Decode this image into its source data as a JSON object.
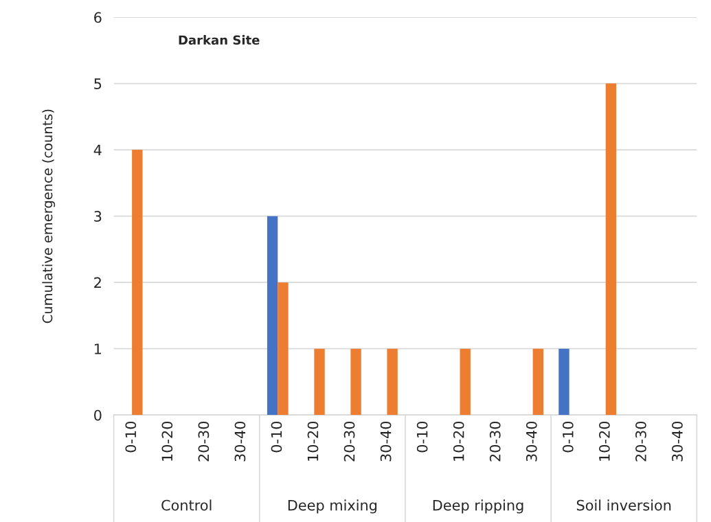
{
  "chart_data": {
    "type": "bar",
    "title": "Darkan Site",
    "ylabel": "Cumulative emergence (counts)",
    "categories": [
      "0-10",
      "10-20",
      "20-30",
      "30-40",
      "0-10",
      "10-20",
      "20-30",
      "30-40",
      "0-10",
      "10-20",
      "20-30",
      "30-40",
      "0-10",
      "10-20",
      "20-30",
      "30-40"
    ],
    "series": [
      {
        "color": "#4472c4",
        "values": [
          0,
          0,
          0,
          0,
          3,
          0,
          0,
          0,
          0,
          0,
          0,
          0,
          1,
          0,
          0,
          0
        ]
      },
      {
        "color": "#ed7d31",
        "values": [
          4,
          0,
          0,
          0,
          2,
          1,
          1,
          1,
          0,
          1,
          0,
          1,
          0,
          5,
          0,
          0
        ]
      }
    ],
    "annotations": [
      "Control",
      "Deep mixing",
      "Deep ripping",
      "Soil inversion"
    ],
    "ylim": [
      0,
      6
    ],
    "yticks": [
      0,
      1,
      2,
      3,
      4,
      5,
      6
    ],
    "grid": "y",
    "legend": false
  }
}
